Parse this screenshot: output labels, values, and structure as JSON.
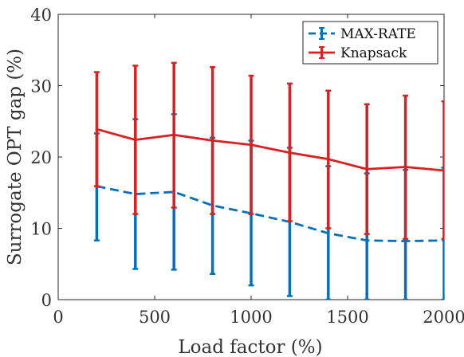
{
  "chart_data": {
    "type": "line",
    "title": "",
    "xlabel": "Load factor (%)",
    "ylabel": "Surrogate OPT gap (%)",
    "xlim": [
      0,
      2000
    ],
    "ylim": [
      0,
      40
    ],
    "xticks": [
      0,
      500,
      1000,
      1500,
      2000
    ],
    "yticks": [
      0,
      10,
      20,
      30,
      40
    ],
    "xtick_labels": [
      "0",
      "500",
      "1000",
      "1500",
      "2000"
    ],
    "ytick_labels": [
      "0",
      "10",
      "20",
      "30",
      "40"
    ],
    "grid": false,
    "legend_position": "top-right",
    "x": [
      200,
      400,
      600,
      800,
      1000,
      1200,
      1400,
      1600,
      1800,
      2000
    ],
    "series": [
      {
        "name": "MAX-RATE",
        "color": "#0072BD",
        "line_style": "dashed",
        "values": [
          15.9,
          14.8,
          15.1,
          13.2,
          12.1,
          10.9,
          9.3,
          8.3,
          8.2,
          8.3
        ],
        "err_low": [
          8.3,
          4.3,
          4.2,
          3.6,
          2.0,
          0.5,
          0,
          0,
          0,
          0
        ],
        "err_high": [
          23.3,
          25.3,
          26.0,
          22.7,
          22.3,
          21.3,
          18.7,
          17.7,
          18.2,
          18.5
        ]
      },
      {
        "name": "Knapsack",
        "color": "#D92121",
        "line_style": "solid",
        "values": [
          23.9,
          22.4,
          23.1,
          22.3,
          21.7,
          20.6,
          19.7,
          18.3,
          18.6,
          18.1
        ],
        "err_low": [
          15.9,
          12.0,
          12.9,
          12.0,
          12.0,
          11.0,
          10.0,
          9.2,
          8.5,
          8.5
        ],
        "err_high": [
          31.9,
          32.8,
          33.2,
          32.6,
          31.4,
          30.3,
          29.3,
          27.4,
          28.6,
          27.8
        ]
      }
    ]
  }
}
